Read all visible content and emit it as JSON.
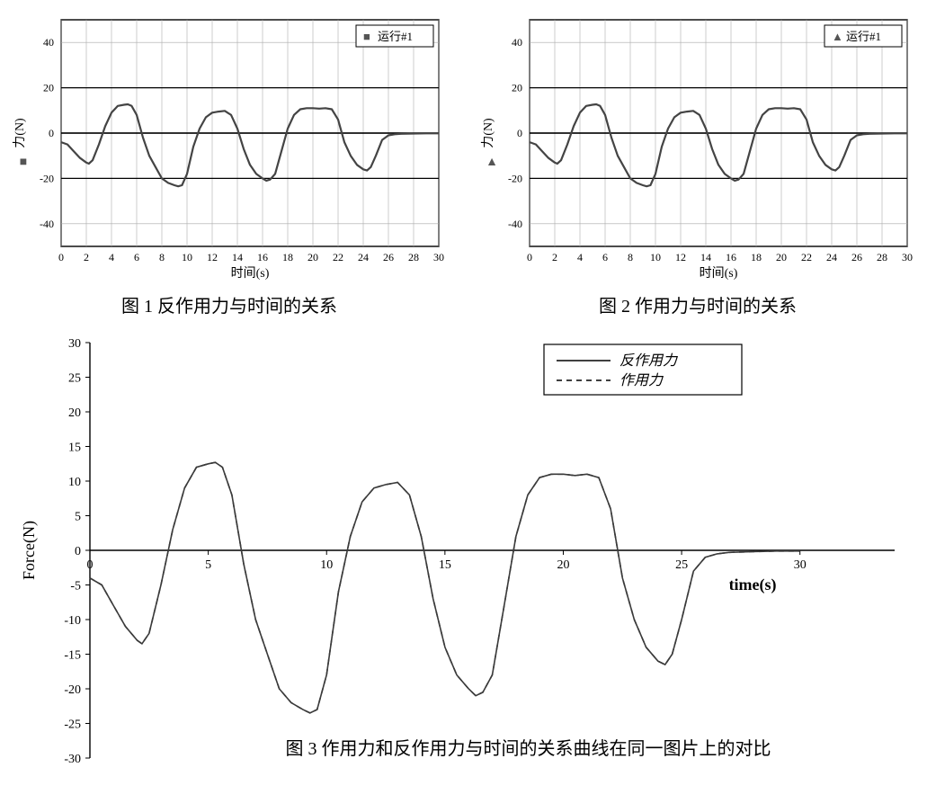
{
  "shared_curve": {
    "x": [
      0,
      0.5,
      1,
      1.5,
      2,
      2.2,
      2.5,
      3,
      3.5,
      4,
      4.5,
      5,
      5.3,
      5.6,
      6,
      6.5,
      7,
      7.5,
      8,
      8.5,
      9,
      9.3,
      9.6,
      10,
      10.5,
      11,
      11.5,
      12,
      12.5,
      13,
      13.5,
      14,
      14.5,
      15,
      15.5,
      16,
      16.3,
      16.6,
      17,
      17.5,
      18,
      18.5,
      19,
      19.5,
      20,
      20.5,
      21,
      21.5,
      22,
      22.5,
      23,
      23.5,
      24,
      24.3,
      24.6,
      25,
      25.5,
      26,
      26.5,
      27,
      28,
      29,
      30
    ],
    "y": [
      -4,
      -5,
      -8,
      -11,
      -13,
      -13.5,
      -12,
      -5,
      3,
      9,
      12,
      12.5,
      12.7,
      12,
      8,
      -2,
      -10,
      -15,
      -20,
      -22,
      -23,
      -23.5,
      -23,
      -18,
      -6,
      2,
      7,
      9,
      9.5,
      9.8,
      8,
      2,
      -7,
      -14,
      -18,
      -20,
      -21,
      -20.5,
      -18,
      -8,
      2,
      8,
      10.5,
      11,
      11,
      10.8,
      11,
      10.5,
      6,
      -4,
      -10,
      -14,
      -16,
      -16.5,
      -15,
      -10,
      -3,
      -1,
      -0.5,
      -0.3,
      -0.2,
      -0.1,
      -0.1
    ]
  },
  "chart1": {
    "type": "line",
    "title_caption": "图 1 反作用力与时间的关系",
    "xlabel": "时间(s)",
    "ylabel": "力(N)",
    "ylabel_marker": "■",
    "xlim": [
      0,
      30
    ],
    "ylim": [
      -50,
      50
    ],
    "xticks": [
      0,
      2,
      4,
      6,
      8,
      10,
      12,
      14,
      16,
      18,
      20,
      22,
      24,
      26,
      28,
      30
    ],
    "yticks": [
      -40,
      -20,
      0,
      20,
      40
    ],
    "legend_label": "运行#1",
    "legend_marker": "■",
    "background_color": "#ffffff",
    "grid_color": "#aaaaaa",
    "axis_color": "#000000",
    "line_color": "#444444",
    "line_width": 2.2,
    "font_size_tick": 12,
    "font_size_label": 14,
    "plot_area_border": "#000000",
    "highlight_y_lines": [
      -20,
      0,
      20
    ]
  },
  "chart2": {
    "type": "line",
    "title_caption": "图 2 作用力与时间的关系",
    "xlabel": "时间(s)",
    "ylabel": "力(N)",
    "ylabel_marker": "▲",
    "xlim": [
      0,
      30
    ],
    "ylim": [
      -50,
      50
    ],
    "xticks": [
      0,
      2,
      4,
      6,
      8,
      10,
      12,
      14,
      16,
      18,
      20,
      22,
      24,
      26,
      28,
      30
    ],
    "yticks": [
      -40,
      -20,
      0,
      20,
      40
    ],
    "legend_label": "运行#1",
    "legend_marker": "▲",
    "background_color": "#ffffff",
    "grid_color": "#aaaaaa",
    "axis_color": "#000000",
    "line_color": "#444444",
    "line_width": 2.2,
    "font_size_tick": 12,
    "font_size_label": 14,
    "plot_area_border": "#000000",
    "highlight_y_lines": [
      -20,
      0,
      20
    ]
  },
  "chart3": {
    "type": "line",
    "title_caption": "图 3 作用力和反作用力与时间的关系曲线在同一图片上的对比",
    "xlabel": "time(s)",
    "ylabel": "Force(N)",
    "xlim": [
      0,
      34
    ],
    "ylim": [
      -30,
      30
    ],
    "xticks": [
      0,
      5,
      10,
      15,
      20,
      25,
      30
    ],
    "yticks": [
      -30,
      -25,
      -20,
      -15,
      -10,
      -5,
      0,
      5,
      10,
      15,
      20,
      25,
      30
    ],
    "legend": [
      {
        "label": "反作用力",
        "style": "solid"
      },
      {
        "label": "作用力",
        "style": "dashed"
      }
    ],
    "background_color": "#ffffff",
    "axis_color": "#000000",
    "tick_len": 5,
    "line_color_reaction": "#3a3a3a",
    "line_color_action": "#3a3a3a",
    "line_width": 1.6,
    "font_size_tick": 14,
    "font_size_label": 18,
    "font_size_legend": 16,
    "font_size_caption": 20
  }
}
